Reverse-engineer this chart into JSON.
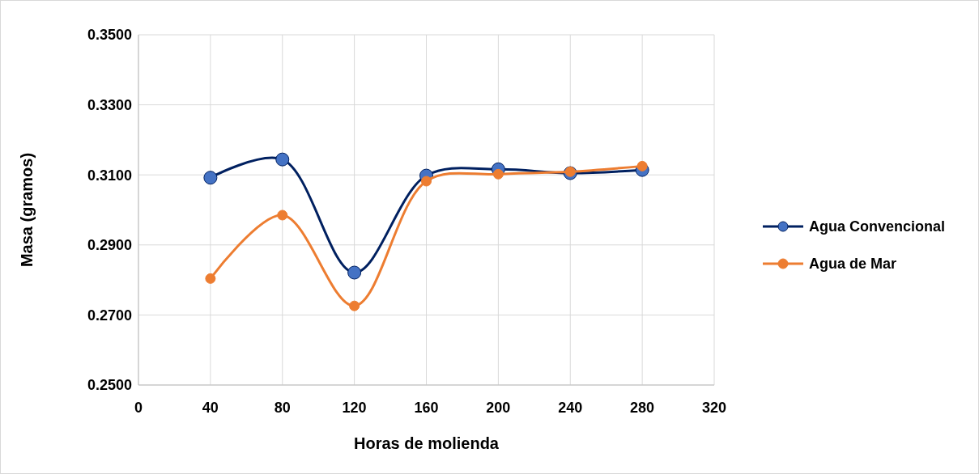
{
  "chart_data": {
    "type": "line",
    "xlabel": "Horas de molienda",
    "ylabel": "Masa (gramos)",
    "x": [
      40,
      80,
      120,
      160,
      200,
      240,
      280
    ],
    "series": [
      {
        "name": "Agua Convencional",
        "color": "#002060",
        "values": [
          0.3092,
          0.3144,
          0.2821,
          0.3098,
          0.3116,
          0.3105,
          0.3114
        ]
      },
      {
        "name": "Agua de Mar",
        "color": "#ed7d31",
        "values": [
          0.2804,
          0.2985,
          0.2726,
          0.3082,
          0.3102,
          0.3109,
          0.3125
        ]
      }
    ],
    "xlim": [
      0,
      320
    ],
    "xticks": [
      0,
      40,
      80,
      120,
      160,
      200,
      240,
      280,
      320
    ],
    "ylim": [
      0.25,
      0.35
    ],
    "yticks": [
      {
        "value": 0.25,
        "label": "0.2500"
      },
      {
        "value": 0.27,
        "label": "0.2700"
      },
      {
        "value": 0.29,
        "label": "0.2900"
      },
      {
        "value": 0.31,
        "label": "0.3100"
      },
      {
        "value": 0.33,
        "label": "0.3300"
      },
      {
        "value": 0.35,
        "label": "0.3500"
      }
    ],
    "grid": true,
    "legend": "right",
    "marker": "circle",
    "line_style": "solid"
  }
}
